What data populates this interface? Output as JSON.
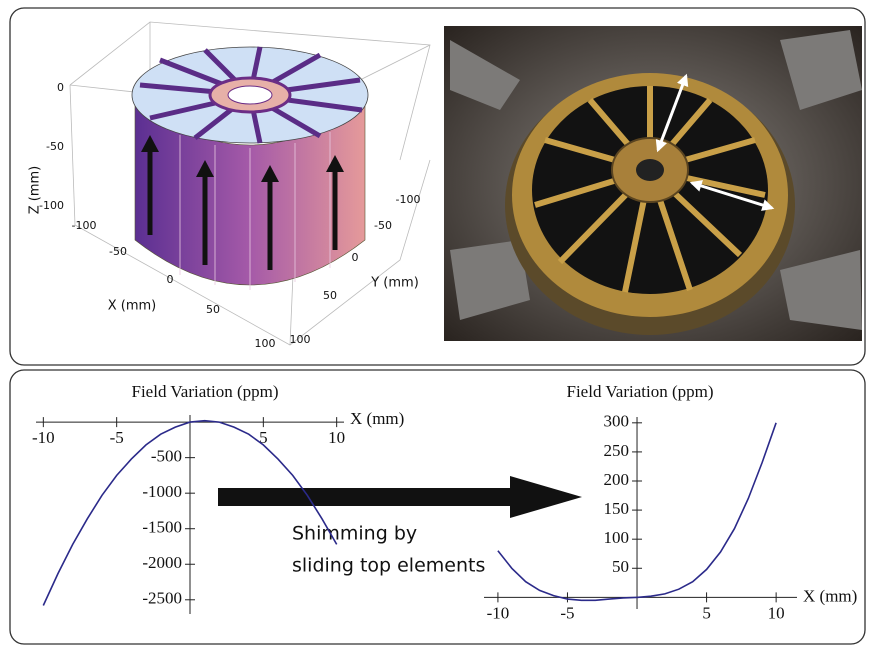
{
  "plot_3d": {
    "z_label": "Z (mm)",
    "x_label": "X (mm)",
    "y_label": "Y (mm)",
    "zticks": [
      0,
      -50,
      -100
    ],
    "xticks": [
      -100,
      -50,
      0,
      50,
      100
    ],
    "yticks": [
      -100,
      -50,
      0,
      50,
      100
    ]
  },
  "annotation": {
    "lines": [
      "Shimming by",
      "sliding top elements"
    ]
  },
  "chart_data": [
    {
      "type": "line",
      "title": "Field Variation (ppm)",
      "xlabel": "X (mm)",
      "x": [
        -10,
        -9,
        -8,
        -7,
        -6,
        -5,
        -4,
        -3,
        -2,
        -1,
        0,
        1,
        2,
        3,
        4,
        5,
        6,
        7,
        8,
        9,
        10
      ],
      "series": [
        {
          "color": "#2b2a8a",
          "values": [
            -2580,
            -2130,
            -1720,
            -1360,
            -1030,
            -750,
            -520,
            -320,
            -170,
            -70,
            0,
            20,
            0,
            -70,
            -170,
            -320,
            -520,
            -750,
            -1030,
            -1360,
            -1720
          ]
        }
      ],
      "xlim": [
        -10.5,
        10.5
      ],
      "ylim": [
        -2700,
        100
      ],
      "xticks": [
        -10,
        -5,
        5,
        10
      ],
      "yticks": [
        -500,
        -1000,
        -1500,
        -2000,
        -2500
      ]
    },
    {
      "type": "line",
      "title": "Field Variation (ppm)",
      "xlabel": "X (mm)",
      "x": [
        -10,
        -9,
        -8,
        -7,
        -6,
        -5,
        -4,
        -3,
        -2,
        -1,
        0,
        1,
        2,
        3,
        4,
        5,
        6,
        7,
        8,
        9,
        10
      ],
      "series": [
        {
          "color": "#2b2a8a",
          "values": [
            80,
            50,
            27,
            12,
            3,
            -3,
            -5,
            -5,
            -3,
            -1,
            0,
            2,
            6,
            14,
            27,
            48,
            78,
            118,
            170,
            232,
            300
          ]
        }
      ],
      "xlim": [
        -11,
        11.5
      ],
      "ylim": [
        -20,
        310
      ],
      "xticks": [
        -10,
        -5,
        5,
        10
      ],
      "yticks": [
        50,
        100,
        150,
        200,
        250,
        300
      ]
    }
  ]
}
